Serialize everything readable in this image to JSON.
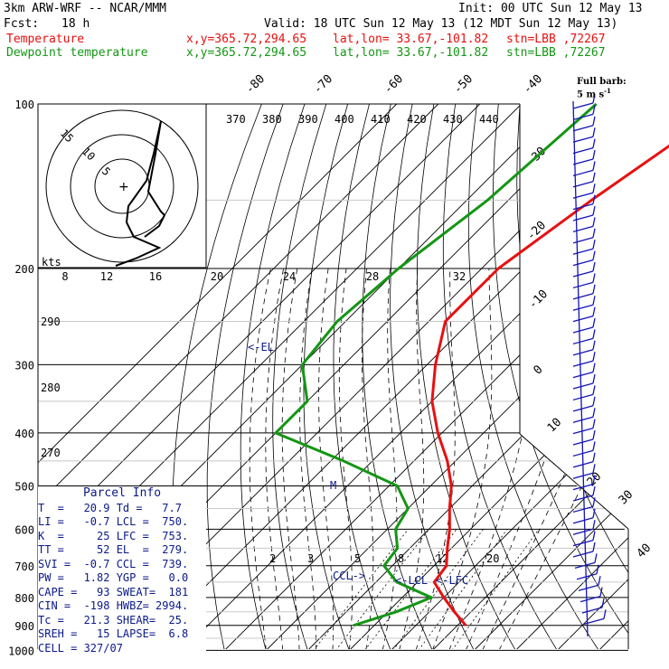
{
  "header": {
    "model": "3km ARW-WRF -- NCAR/MMM",
    "init": "Init: 00 UTC Sun 12 May 13",
    "fcst_label": "Fcst:",
    "fcst_value": "18 h",
    "valid": "Valid: 18 UTC Sun 12 May 13 (12 MDT Sun 12 May 13)",
    "temp_label": "Temperature",
    "dew_label": "Dewpoint temperature",
    "loc_xy": "x,y=365.72,294.65",
    "loc_latlon": "lat,lon= 33.67,-101.82",
    "loc_stn": "stn=LBB ,72267"
  },
  "colors": {
    "temp": "#e81010",
    "dew": "#149614",
    "info": "#0a1a8a",
    "wind": "#1414b4"
  },
  "barb_legend": {
    "line1": "Full barb:",
    "line2": "5 m s"
  },
  "parcel": {
    "title": "Parcel Info",
    "rows": [
      "T  =   20.9 Td =   7.7",
      "LI =   -0.7 LCL =  750.",
      "K  =     25 LFC =  753.",
      "TT =     52 EL  =  279.",
      "SVI =  -0.7 CCL =  739.",
      "PW =   1.82 YGP =   0.0",
      "CAPE =   93 SWEAT=  181",
      "CIN =  -198 HWBZ= 2994.",
      "Tc =   21.3 SHEAR=  25.",
      "SREH =   15 LAPSE=  6.8",
      "CELL = 327/07"
    ]
  },
  "chart_data": {
    "type": "line",
    "pressure_levels": [
      100,
      200,
      300,
      400,
      500,
      600,
      700,
      800,
      900,
      1000
    ],
    "pressure_labels": [
      "100",
      "200",
      "300",
      "400",
      "500",
      "600",
      "700",
      "800",
      "900",
      "1000"
    ],
    "isotherm_labels": [
      "-80",
      "-70",
      "-60",
      "-50",
      "-40",
      "-30",
      "-20",
      "-10",
      "0",
      "10",
      "20",
      "30",
      "40"
    ],
    "theta_labels": [
      "370",
      "380",
      "390",
      "400",
      "410",
      "420",
      "430",
      "440"
    ],
    "mixing_ratio_labels": [
      "2",
      "3",
      "5",
      "8",
      "12",
      "20"
    ],
    "wet_bulb_labels": [
      "290",
      "280",
      "270"
    ],
    "annotations": [
      "<-EL",
      "CCL->",
      "<-LCL",
      "<-LFC",
      "M"
    ],
    "temperature_profile": {
      "name": "Temperature",
      "pressure": [
        100,
        150,
        200,
        250,
        300,
        350,
        400,
        450,
        500,
        550,
        600,
        650,
        700,
        750,
        800,
        850,
        900
      ],
      "temp": [
        -40,
        -50,
        -56,
        -56,
        -48,
        -40,
        -31,
        -22,
        -15,
        -10,
        -5,
        -1,
        3,
        4,
        10,
        16,
        22
      ]
    },
    "dewpoint_profile": {
      "name": "Dewpoint temperature",
      "pressure": [
        100,
        150,
        200,
        250,
        300,
        350,
        400,
        450,
        500,
        550,
        600,
        650,
        700,
        750,
        800,
        850,
        900
      ],
      "temp": [
        -72,
        -75,
        -80,
        -82,
        -80,
        -70,
        -70,
        -47,
        -28,
        -20,
        -18,
        -13,
        -12,
        -5,
        7,
        2,
        -5
      ]
    },
    "hodograph": {
      "units": "kts",
      "ring_labels": [
        "5",
        "10",
        "15"
      ],
      "scale_labels": [
        "8",
        "12",
        "16",
        "20",
        "24",
        "28",
        "32"
      ]
    }
  }
}
